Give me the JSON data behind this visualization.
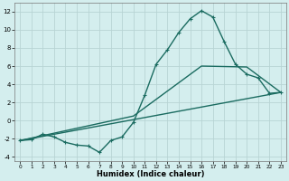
{
  "xlabel": "Humidex (Indice chaleur)",
  "background_color": "#d4eeee",
  "grid_color": "#b8d4d4",
  "line_color": "#1a6b60",
  "xlim": [
    -0.5,
    23.5
  ],
  "ylim": [
    -4.5,
    13.0
  ],
  "xticks": [
    0,
    1,
    2,
    3,
    4,
    5,
    6,
    7,
    8,
    9,
    10,
    11,
    12,
    13,
    14,
    15,
    16,
    17,
    18,
    19,
    20,
    21,
    22,
    23
  ],
  "yticks": [
    -4,
    -2,
    0,
    2,
    4,
    6,
    8,
    10,
    12
  ],
  "curve1_x": [
    0,
    1,
    2,
    3,
    4,
    5,
    6,
    7,
    8,
    9,
    10,
    11,
    12,
    13,
    14,
    15,
    16,
    17,
    18,
    19,
    20,
    21,
    22,
    23
  ],
  "curve1_y": [
    -2.2,
    -2.1,
    -1.5,
    -1.8,
    -2.4,
    -2.7,
    -2.8,
    -3.5,
    -2.2,
    -1.8,
    -0.2,
    2.8,
    6.2,
    7.8,
    9.7,
    11.2,
    12.1,
    11.4,
    8.7,
    6.2,
    5.1,
    4.7,
    3.0,
    3.1
  ],
  "curve2_x": [
    0,
    23
  ],
  "curve2_y": [
    -2.2,
    3.1
  ],
  "curve3_x": [
    0,
    10,
    16,
    20,
    23
  ],
  "curve3_y": [
    -2.2,
    0.5,
    6.0,
    5.9,
    3.1
  ],
  "line_width": 1.0,
  "marker": "+"
}
